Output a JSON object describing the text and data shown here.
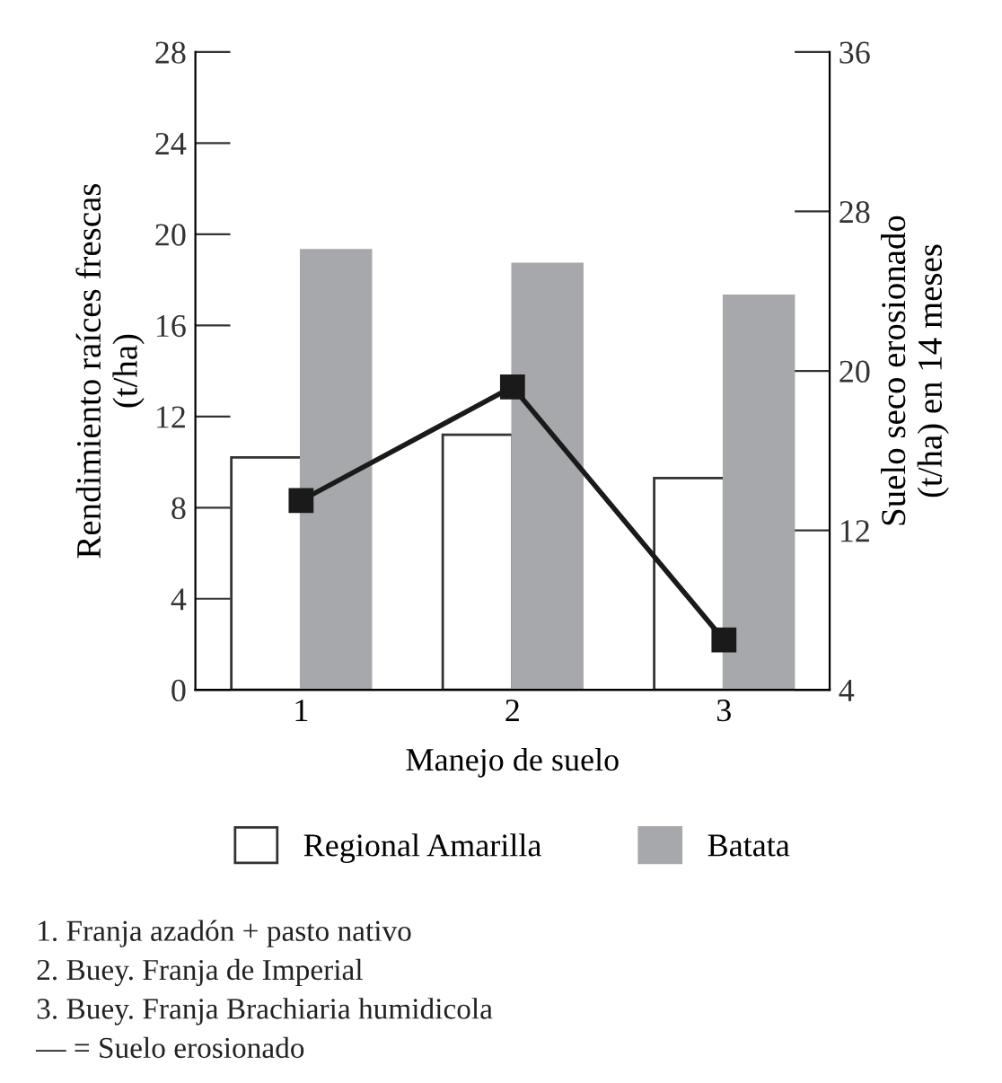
{
  "chart_data": {
    "type": "bar",
    "categories": [
      "1",
      "2",
      "3"
    ],
    "xlabel": "Manejo de suelo",
    "ylabel": "Rendimiento raíces frescas\n(t/ha)",
    "y2label": "Suelo seco erosionado\n(t/ha) en 14 meses",
    "series": [
      {
        "name": "Regional Amarilla",
        "color": "#ffffff",
        "values": [
          10.2,
          11.2,
          9.3
        ]
      },
      {
        "name": "Batata",
        "color": "#a7a8ab",
        "values": [
          19.3,
          18.7,
          17.3
        ]
      },
      {
        "type": "line",
        "axis": "y2",
        "color": "#1a1a1a",
        "marker": "square",
        "line_style": "solid",
        "values": [
          13.5,
          19.2,
          6.5
        ]
      }
    ],
    "ylim": [
      0,
      28
    ],
    "yticks": [
      0,
      4,
      8,
      12,
      16,
      20,
      24,
      28
    ],
    "y2lim": [
      4,
      36
    ],
    "y2ticks": [
      4,
      12,
      20,
      28,
      36
    ],
    "grid": false,
    "legend": "bottom",
    "annotations": [
      "1. Franja azadón + pasto nativo",
      "2. Buey. Franja de Imperial",
      "3. Buey. Franja Brachiaria humidicola",
      "— = Suelo erosionado"
    ]
  }
}
